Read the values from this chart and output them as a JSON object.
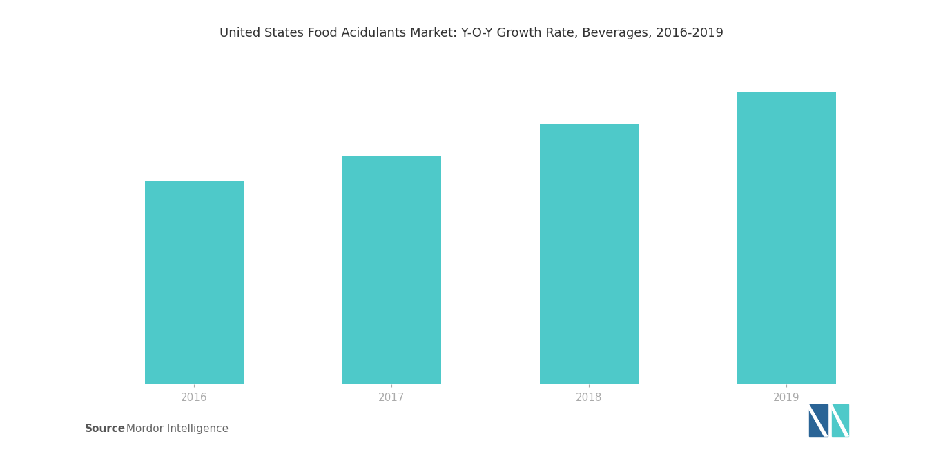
{
  "title": "United States Food Acidulants Market: Y-O-Y Growth Rate, Beverages, 2016-2019",
  "categories": [
    "2016",
    "2017",
    "2018",
    "2019"
  ],
  "values": [
    3.2,
    3.6,
    4.1,
    4.6
  ],
  "bar_color": "#4ec9c9",
  "background_color": "#ffffff",
  "source_bold": "Source",
  "source_rest": " : Mordor Intelligence",
  "title_fontsize": 13,
  "tick_fontsize": 11,
  "source_fontsize": 11,
  "bar_width": 0.5,
  "ylim": [
    0,
    5.2
  ],
  "logo_dark": "#2a6496",
  "logo_teal": "#4ec9c9"
}
